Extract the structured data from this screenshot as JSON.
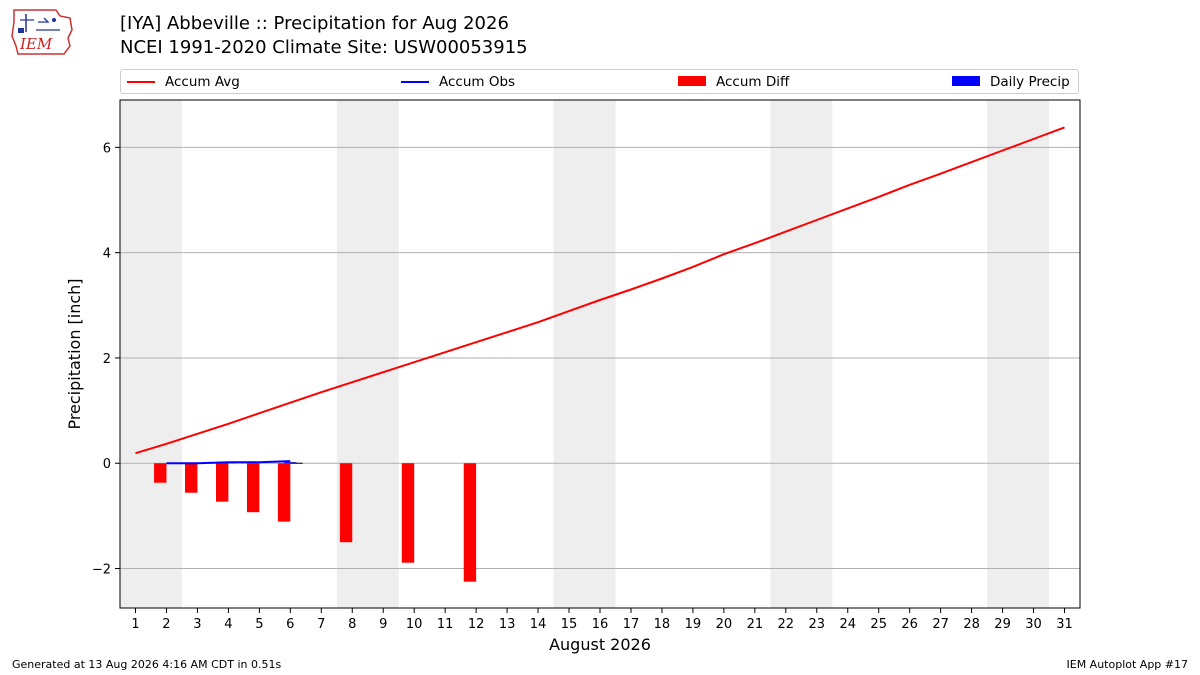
{
  "logo": {
    "text": "IEM",
    "icon": "iem-logo-icon"
  },
  "header": {
    "title": "[IYA] Abbeville :: Precipitation for Aug 2026",
    "subtitle": "NCEI 1991-2020 Climate Site: USW00053915"
  },
  "legend": {
    "items": [
      {
        "label": "Accum Avg",
        "kind": "line",
        "color": "#ff0000"
      },
      {
        "label": "Accum Obs",
        "kind": "line",
        "color": "#0000ff"
      },
      {
        "label": "Accum Diff",
        "kind": "box",
        "color": "#ff0000"
      },
      {
        "label": "Daily Precip",
        "kind": "box",
        "color": "#0000ff"
      }
    ]
  },
  "chart_data": {
    "type": "bar",
    "xlabel": "August 2026",
    "ylabel": "Precipitation [inch]",
    "xlim": [
      0.5,
      31.5
    ],
    "ylim": [
      -2.75,
      6.9
    ],
    "yticks": [
      -2,
      0,
      2,
      4,
      6
    ],
    "ytick_labels": [
      "−2",
      "0",
      "2",
      "4",
      "6"
    ],
    "x_categories": [
      1,
      2,
      3,
      4,
      5,
      6,
      7,
      8,
      9,
      10,
      11,
      12,
      13,
      14,
      15,
      16,
      17,
      18,
      19,
      20,
      21,
      22,
      23,
      24,
      25,
      26,
      27,
      28,
      29,
      30,
      31
    ],
    "grid": "horizontal",
    "weekend_shading": [
      [
        0.5,
        2.5
      ],
      [
        7.5,
        9.5
      ],
      [
        14.5,
        16.5
      ],
      [
        21.5,
        23.5
      ],
      [
        28.5,
        30.5
      ]
    ],
    "weekend_color": "#eeeeee",
    "series": [
      {
        "name": "Accum Avg",
        "type": "line",
        "color": "#ff0000",
        "x": [
          1,
          2,
          3,
          4,
          5,
          6,
          7,
          8,
          9,
          10,
          11,
          12,
          13,
          14,
          15,
          16,
          17,
          18,
          19,
          20,
          21,
          22,
          23,
          24,
          25,
          26,
          27,
          28,
          29,
          30,
          31
        ],
        "values": [
          0.19,
          0.37,
          0.56,
          0.75,
          0.95,
          1.15,
          1.35,
          1.54,
          1.73,
          1.92,
          2.11,
          2.3,
          2.49,
          2.68,
          2.89,
          3.1,
          3.3,
          3.51,
          3.73,
          3.97,
          4.18,
          4.4,
          4.62,
          4.84,
          5.06,
          5.29,
          5.5,
          5.72,
          5.94,
          6.16,
          6.38
        ]
      },
      {
        "name": "Accum Obs",
        "type": "line",
        "color": "#0000ff",
        "x": [
          2,
          3,
          4,
          5,
          6
        ],
        "values": [
          0.0,
          0.0,
          0.02,
          0.02,
          0.04
        ]
      },
      {
        "name": "Accum Diff",
        "type": "bar",
        "color": "#ff0000",
        "x": [
          1.8,
          2.8,
          3.8,
          4.8,
          5.8,
          7.8,
          9.8,
          11.8
        ],
        "values": [
          -0.37,
          -0.56,
          -0.73,
          -0.93,
          -1.11,
          -1.5,
          -1.89,
          -2.25
        ]
      },
      {
        "name": "Daily Precip",
        "type": "bar",
        "color": "#0000ff",
        "x": [
          2,
          3,
          4,
          5,
          6
        ],
        "values": [
          0.0,
          0.0,
          0.02,
          0.0,
          0.02
        ]
      }
    ]
  },
  "footer": {
    "generated": "Generated at 13 Aug 2026 4:16 AM CDT in 0.51s",
    "app": "IEM Autoplot App #17"
  }
}
